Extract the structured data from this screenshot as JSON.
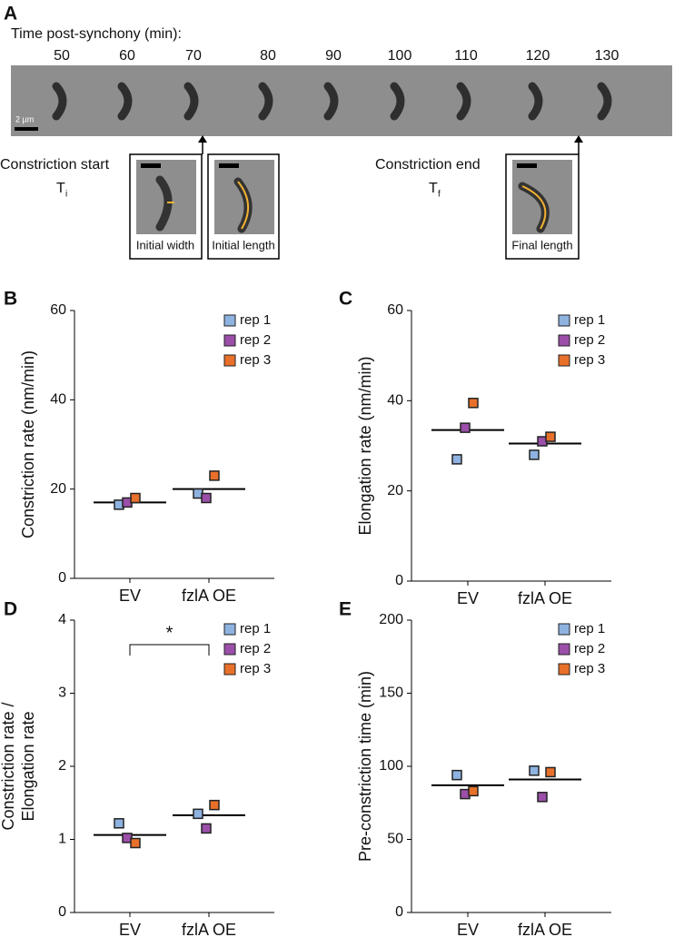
{
  "panel_a": {
    "letter": "A",
    "title": "Time post-synchony (min):",
    "times": [
      "50",
      "60",
      "70",
      "80",
      "90",
      "100",
      "110",
      "120",
      "130"
    ],
    "scale": "2 µm",
    "start_label": "Constriction start",
    "start_symbol": {
      "main": "T",
      "sub": "i"
    },
    "end_label": "Constriction end",
    "end_symbol": {
      "main": "T",
      "sub": "f"
    },
    "insets": [
      "Initial width",
      "Initial length",
      "Final length"
    ]
  },
  "chart_data": [
    {
      "type": "dot",
      "letter": "B",
      "ylabel": [
        "Constriction rate (nm/min)"
      ],
      "categories": [
        "EV",
        "fzlA OE"
      ],
      "ylim": [
        0,
        60
      ],
      "yticks": [
        0,
        20,
        40,
        60
      ],
      "series": [
        {
          "name": "rep 1",
          "color": "#8fb3e0",
          "values": [
            16.5,
            19
          ]
        },
        {
          "name": "rep 2",
          "color": "#9b4fa8",
          "values": [
            17,
            18
          ]
        },
        {
          "name": "rep 3",
          "color": "#e8702a",
          "values": [
            18,
            23
          ]
        }
      ],
      "mean": [
        17,
        20
      ]
    },
    {
      "type": "dot",
      "letter": "C",
      "ylabel": [
        "Elongation rate (nm/min)"
      ],
      "categories": [
        "EV",
        "fzlA OE"
      ],
      "ylim": [
        0,
        60
      ],
      "yticks": [
        0,
        20,
        40,
        60
      ],
      "series": [
        {
          "name": "rep 1",
          "color": "#8fb3e0",
          "values": [
            27,
            28
          ]
        },
        {
          "name": "rep 2",
          "color": "#9b4fa8",
          "values": [
            34,
            31
          ]
        },
        {
          "name": "rep 3",
          "color": "#e8702a",
          "values": [
            39.5,
            32
          ]
        }
      ],
      "mean": [
        33.5,
        30.5
      ]
    },
    {
      "type": "dot",
      "letter": "D",
      "ylabel": [
        "Constriction rate /",
        "Elongation rate"
      ],
      "categories": [
        "EV",
        "fzlA OE"
      ],
      "ylim": [
        0,
        4
      ],
      "yticks": [
        0,
        1,
        2,
        3,
        4
      ],
      "annotation": "*",
      "series": [
        {
          "name": "rep 1",
          "color": "#8fb3e0",
          "values": [
            1.22,
            1.35
          ]
        },
        {
          "name": "rep 2",
          "color": "#9b4fa8",
          "values": [
            1.02,
            1.15
          ]
        },
        {
          "name": "rep 3",
          "color": "#e8702a",
          "values": [
            0.95,
            1.47
          ]
        }
      ],
      "mean": [
        1.06,
        1.33
      ]
    },
    {
      "type": "dot",
      "letter": "E",
      "ylabel": [
        "Pre-constriction time (min)"
      ],
      "categories": [
        "EV",
        "fzlA OE"
      ],
      "ylim": [
        0,
        200
      ],
      "yticks": [
        0,
        50,
        100,
        150,
        200
      ],
      "series": [
        {
          "name": "rep 1",
          "color": "#8fb3e0",
          "values": [
            94,
            97
          ]
        },
        {
          "name": "rep 2",
          "color": "#9b4fa8",
          "values": [
            81,
            79
          ]
        },
        {
          "name": "rep 3",
          "color": "#e8702a",
          "values": [
            83,
            96
          ]
        }
      ],
      "mean": [
        87,
        91
      ]
    }
  ]
}
